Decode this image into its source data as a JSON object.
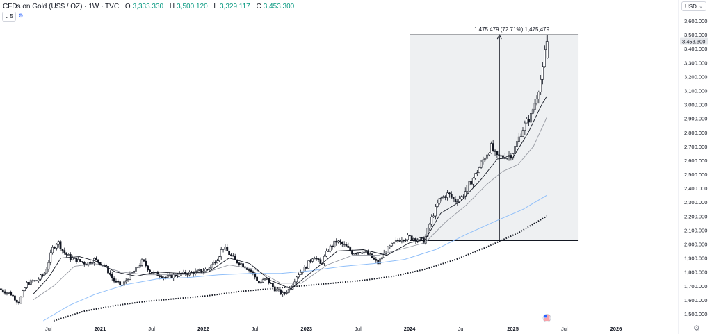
{
  "header": {
    "title": "CFDs on Gold (US$ / OZ) · 1W · TVC",
    "ohlc": [
      {
        "label": "O",
        "value": "3,333.330"
      },
      {
        "label": "H",
        "value": "3,500.120"
      },
      {
        "label": "L",
        "value": "3,329.117"
      },
      {
        "label": "C",
        "value": "3,453.300"
      }
    ],
    "indicator_count": "5"
  },
  "currency": "USD",
  "measure": {
    "text": "1,475.479 (72.71%) 1,475,479"
  },
  "colors": {
    "up": "#131722",
    "down": "#131722",
    "ma_fast": "#131722",
    "ma_mid": "#9598a1",
    "ma_slow": "#90bff9",
    "ma_dotted": "#131722",
    "measure_fill": "#eef0f2",
    "last_price_bg": "#e6e8ec"
  },
  "chart_data": {
    "type": "candlestick",
    "title": "CFDs on Gold (US$ / OZ) · 1W · TVC",
    "y_range": [
      1450,
      3650
    ],
    "y_ticks": [
      "1,500.000",
      "1,600.000",
      "1,700.000",
      "1,800.000",
      "1,900.000",
      "2,000.000",
      "2,100.000",
      "2,200.000",
      "2,300.000",
      "2,400.000",
      "2,500.000",
      "2,600.000",
      "2,700.000",
      "2,800.000",
      "2,900.000",
      "3,000.000",
      "3,100.000",
      "3,200.000",
      "3,300.000",
      "3,400.000",
      "3,500.000",
      "3,600.000"
    ],
    "x_ticks": [
      {
        "label": "Jul",
        "x": 2020.5
      },
      {
        "label": "2021",
        "x": 2021.0
      },
      {
        "label": "Jul",
        "x": 2021.5
      },
      {
        "label": "2022",
        "x": 2022.0
      },
      {
        "label": "Jul",
        "x": 2022.5
      },
      {
        "label": "2023",
        "x": 2023.0
      },
      {
        "label": "Jul",
        "x": 2023.5
      },
      {
        "label": "2024",
        "x": 2024.0
      },
      {
        "label": "Jul",
        "x": 2024.5
      },
      {
        "label": "2025",
        "x": 2025.0
      },
      {
        "label": "Jul",
        "x": 2025.5
      },
      {
        "label": "2026",
        "x": 2026.0
      }
    ],
    "x_range": [
      2020.03,
      2026.6
    ],
    "last_price": "3,453.300",
    "price_path": [
      [
        2020.03,
        1680
      ],
      [
        2020.15,
        1640
      ],
      [
        2020.22,
        1580
      ],
      [
        2020.3,
        1720
      ],
      [
        2020.4,
        1740
      ],
      [
        2020.48,
        1800
      ],
      [
        2020.55,
        1970
      ],
      [
        2020.6,
        2020
      ],
      [
        2020.65,
        1950
      ],
      [
        2020.72,
        1900
      ],
      [
        2020.8,
        1880
      ],
      [
        2020.88,
        1860
      ],
      [
        2020.95,
        1890
      ],
      [
        2021.05,
        1850
      ],
      [
        2021.15,
        1730
      ],
      [
        2021.22,
        1700
      ],
      [
        2021.28,
        1760
      ],
      [
        2021.38,
        1840
      ],
      [
        2021.42,
        1880
      ],
      [
        2021.5,
        1800
      ],
      [
        2021.58,
        1780
      ],
      [
        2021.65,
        1760
      ],
      [
        2021.75,
        1780
      ],
      [
        2021.85,
        1790
      ],
      [
        2021.95,
        1800
      ],
      [
        2022.05,
        1820
      ],
      [
        2022.15,
        1900
      ],
      [
        2022.2,
        1980
      ],
      [
        2022.25,
        1940
      ],
      [
        2022.32,
        1880
      ],
      [
        2022.4,
        1850
      ],
      [
        2022.48,
        1800
      ],
      [
        2022.55,
        1720
      ],
      [
        2022.62,
        1750
      ],
      [
        2022.7,
        1680
      ],
      [
        2022.78,
        1640
      ],
      [
        2022.85,
        1680
      ],
      [
        2022.92,
        1780
      ],
      [
        2023.0,
        1830
      ],
      [
        2023.08,
        1920
      ],
      [
        2023.15,
        1850
      ],
      [
        2023.22,
        1960
      ],
      [
        2023.3,
        2020
      ],
      [
        2023.38,
        1990
      ],
      [
        2023.45,
        1940
      ],
      [
        2023.55,
        1950
      ],
      [
        2023.62,
        1920
      ],
      [
        2023.7,
        1860
      ],
      [
        2023.78,
        1950
      ],
      [
        2023.85,
        2000
      ],
      [
        2023.92,
        2040
      ],
      [
        2024.0,
        2050
      ],
      [
        2024.08,
        2040
      ],
      [
        2024.15,
        2020
      ],
      [
        2024.22,
        2180
      ],
      [
        2024.3,
        2320
      ],
      [
        2024.38,
        2360
      ],
      [
        2024.45,
        2310
      ],
      [
        2024.52,
        2340
      ],
      [
        2024.58,
        2420
      ],
      [
        2024.65,
        2500
      ],
      [
        2024.72,
        2600
      ],
      [
        2024.8,
        2700
      ],
      [
        2024.85,
        2620
      ],
      [
        2024.92,
        2630
      ],
      [
        2025.0,
        2640
      ],
      [
        2025.05,
        2730
      ],
      [
        2025.12,
        2850
      ],
      [
        2025.18,
        2910
      ],
      [
        2025.25,
        3080
      ],
      [
        2025.3,
        3250
      ],
      [
        2025.33,
        3453
      ]
    ],
    "ma_fast": [
      [
        2020.35,
        1640
      ],
      [
        2020.5,
        1760
      ],
      [
        2020.62,
        1900
      ],
      [
        2020.8,
        1910
      ],
      [
        2020.95,
        1880
      ],
      [
        2021.15,
        1800
      ],
      [
        2021.35,
        1770
      ],
      [
        2021.55,
        1800
      ],
      [
        2021.8,
        1790
      ],
      [
        2022.05,
        1800
      ],
      [
        2022.25,
        1900
      ],
      [
        2022.45,
        1860
      ],
      [
        2022.65,
        1740
      ],
      [
        2022.85,
        1680
      ],
      [
        2023.05,
        1800
      ],
      [
        2023.3,
        1950
      ],
      [
        2023.55,
        1960
      ],
      [
        2023.78,
        1920
      ],
      [
        2024.0,
        2010
      ],
      [
        2024.15,
        2030
      ],
      [
        2024.3,
        2220
      ],
      [
        2024.5,
        2310
      ],
      [
        2024.7,
        2470
      ],
      [
        2024.85,
        2610
      ],
      [
        2025.0,
        2620
      ],
      [
        2025.15,
        2800
      ],
      [
        2025.28,
        3000
      ],
      [
        2025.33,
        3060
      ]
    ],
    "ma_mid": [
      [
        2020.35,
        1600
      ],
      [
        2020.55,
        1700
      ],
      [
        2020.75,
        1840
      ],
      [
        2020.95,
        1860
      ],
      [
        2021.2,
        1800
      ],
      [
        2021.45,
        1780
      ],
      [
        2021.7,
        1780
      ],
      [
        2022.0,
        1790
      ],
      [
        2022.25,
        1850
      ],
      [
        2022.5,
        1820
      ],
      [
        2022.75,
        1720
      ],
      [
        2022.95,
        1720
      ],
      [
        2023.2,
        1850
      ],
      [
        2023.45,
        1920
      ],
      [
        2023.7,
        1920
      ],
      [
        2023.95,
        1970
      ],
      [
        2024.15,
        2010
      ],
      [
        2024.35,
        2160
      ],
      [
        2024.55,
        2280
      ],
      [
        2024.75,
        2430
      ],
      [
        2024.9,
        2520
      ],
      [
        2025.05,
        2570
      ],
      [
        2025.2,
        2700
      ],
      [
        2025.33,
        2910
      ]
    ],
    "ma_slow": [
      [
        2020.45,
        1450
      ],
      [
        2020.7,
        1560
      ],
      [
        2020.95,
        1640
      ],
      [
        2021.25,
        1710
      ],
      [
        2021.55,
        1750
      ],
      [
        2021.85,
        1760
      ],
      [
        2022.15,
        1780
      ],
      [
        2022.45,
        1790
      ],
      [
        2022.75,
        1790
      ],
      [
        2023.05,
        1810
      ],
      [
        2023.35,
        1840
      ],
      [
        2023.65,
        1860
      ],
      [
        2023.95,
        1890
      ],
      [
        2024.25,
        1960
      ],
      [
        2024.55,
        2070
      ],
      [
        2024.85,
        2170
      ],
      [
        2025.1,
        2250
      ],
      [
        2025.33,
        2350
      ]
    ],
    "ma_dotted": [
      [
        2020.55,
        1450
      ],
      [
        2020.85,
        1520
      ],
      [
        2021.15,
        1560
      ],
      [
        2021.45,
        1590
      ],
      [
        2021.75,
        1610
      ],
      [
        2022.05,
        1630
      ],
      [
        2022.35,
        1660
      ],
      [
        2022.65,
        1680
      ],
      [
        2022.95,
        1700
      ],
      [
        2023.25,
        1720
      ],
      [
        2023.55,
        1740
      ],
      [
        2023.85,
        1770
      ],
      [
        2024.15,
        1820
      ],
      [
        2024.45,
        1890
      ],
      [
        2024.75,
        1980
      ],
      [
        2025.05,
        2080
      ],
      [
        2025.33,
        2200
      ]
    ],
    "measure_range": {
      "x": [
        2024.0,
        2025.63
      ],
      "y": [
        2025,
        3500
      ]
    },
    "measure_arrow_x": 2024.87
  }
}
